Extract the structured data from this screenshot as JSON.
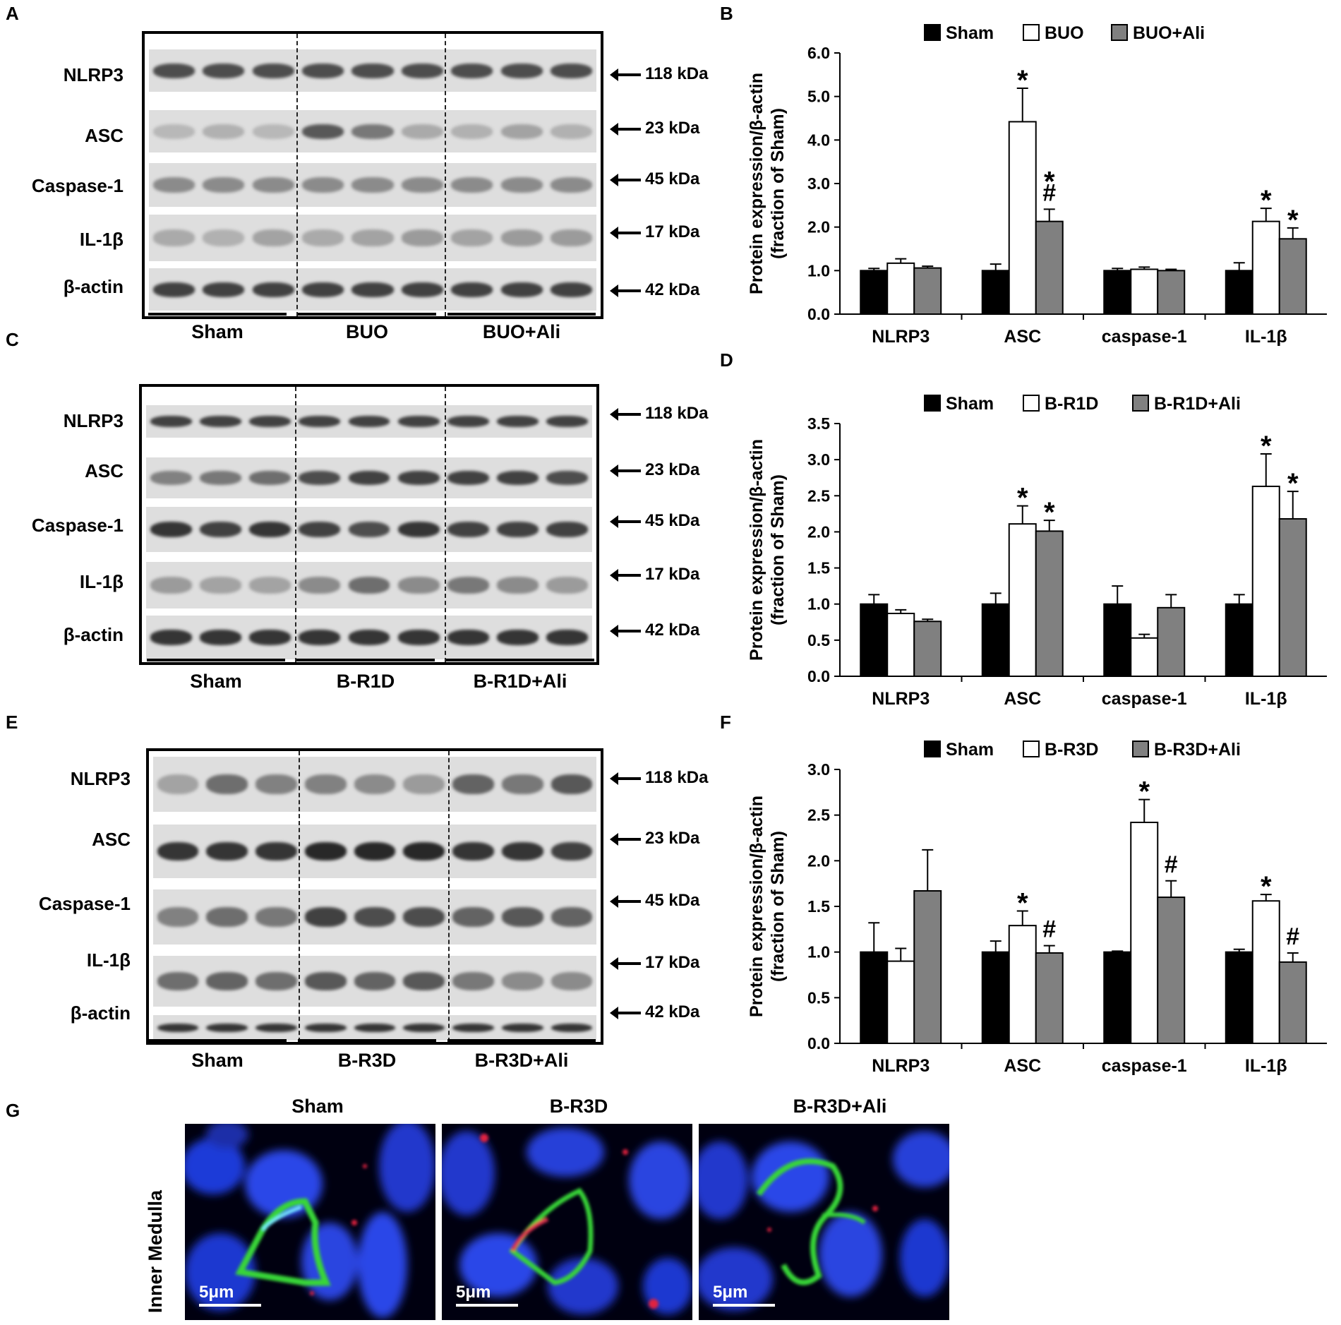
{
  "panels": [
    {
      "letter": "A",
      "kind": "blot",
      "scheme": "A",
      "rows": [
        "NLRP3",
        "ASC",
        "Caspase-1",
        "IL-1β",
        "β-actin"
      ],
      "kda": [
        "118 kDa",
        "23 kDa",
        "45 kDa",
        "17 kDa",
        "42 kDa"
      ],
      "groups": [
        "Sham",
        "BUO",
        "BUO+Ali"
      ]
    },
    {
      "letter": "C",
      "kind": "blot",
      "scheme": "C",
      "rows": [
        "NLRP3",
        "ASC",
        "Caspase-1",
        "IL-1β",
        "β-actin"
      ],
      "kda": [
        "118 kDa",
        "23 kDa",
        "45 kDa",
        "17 kDa",
        "42 kDa"
      ],
      "groups": [
        "Sham",
        "B-R1D",
        "B-R1D+Ali"
      ]
    },
    {
      "letter": "E",
      "kind": "blot",
      "scheme": "E",
      "rows": [
        "NLRP3",
        "ASC",
        "Caspase-1",
        "IL-1β",
        "β-actin"
      ],
      "kda": [
        "118 kDa",
        "23 kDa",
        "45 kDa",
        "17 kDa",
        "42 kDa"
      ],
      "groups": [
        "Sham",
        "B-R3D",
        "B-R3D+Ali"
      ]
    },
    {
      "letter": "G",
      "kind": "microscopy",
      "titles": [
        "Sham",
        "B-R3D",
        "B-R3D+Ali"
      ],
      "side_label": "Inner Medulla",
      "scale_bar": "5μm"
    }
  ],
  "chart_data": [
    {
      "letter": "B",
      "type": "bar",
      "ylabel_line1": "Protein expression/β-actin",
      "ylabel_line2": "(fraction of Sham)",
      "categories": [
        "NLRP3",
        "ASC",
        "caspase-1",
        "IL-1β"
      ],
      "ylim": [
        0,
        6
      ],
      "yticks": [
        "0.0",
        "1.0",
        "2.0",
        "3.0",
        "4.0",
        "5.0",
        "6.0"
      ],
      "legend_position": "top",
      "series": [
        {
          "name": "Sham",
          "color": "#000000",
          "values": [
            1.0,
            1.0,
            1.0,
            1.0
          ],
          "errors": [
            0.05,
            0.15,
            0.05,
            0.18
          ]
        },
        {
          "name": "BUO",
          "color": "#ffffff",
          "values": [
            1.17,
            4.42,
            1.03,
            2.13
          ],
          "errors": [
            0.1,
            0.77,
            0.05,
            0.3
          ]
        },
        {
          "name": "BUO+Ali",
          "color": "#808080",
          "values": [
            1.06,
            2.13,
            1.0,
            1.73
          ],
          "errors": [
            0.04,
            0.28,
            0.03,
            0.25
          ]
        }
      ],
      "annotations": [
        {
          "category": 1,
          "series": 1,
          "text": "*"
        },
        {
          "category": 1,
          "series": 2,
          "text": "#"
        },
        {
          "category": 1,
          "series": 2,
          "text": "*"
        },
        {
          "category": 3,
          "series": 1,
          "text": "*"
        },
        {
          "category": 3,
          "series": 2,
          "text": "*"
        }
      ]
    },
    {
      "letter": "D",
      "type": "bar",
      "ylabel_line1": "Protein expression/β-actin",
      "ylabel_line2": "(fraction of Sham)",
      "categories": [
        "NLRP3",
        "ASC",
        "caspase-1",
        "IL-1β"
      ],
      "ylim": [
        0,
        3.5
      ],
      "yticks": [
        "0.0",
        "0.5",
        "1.0",
        "1.5",
        "2.0",
        "2.5",
        "3.0",
        "3.5"
      ],
      "legend_position": "top",
      "series": [
        {
          "name": "Sham",
          "color": "#000000",
          "values": [
            1.0,
            1.0,
            1.0,
            1.0
          ],
          "errors": [
            0.13,
            0.15,
            0.25,
            0.13
          ]
        },
        {
          "name": "B-R1D",
          "color": "#ffffff",
          "values": [
            0.87,
            2.11,
            0.53,
            2.63
          ],
          "errors": [
            0.05,
            0.25,
            0.05,
            0.45
          ]
        },
        {
          "name": "B-R1D+Ali",
          "color": "#808080",
          "values": [
            0.76,
            2.01,
            0.95,
            2.18
          ],
          "errors": [
            0.03,
            0.15,
            0.18,
            0.38
          ]
        }
      ],
      "annotations": [
        {
          "category": 1,
          "series": 1,
          "text": "*"
        },
        {
          "category": 1,
          "series": 2,
          "text": "*"
        },
        {
          "category": 3,
          "series": 1,
          "text": "*"
        },
        {
          "category": 3,
          "series": 2,
          "text": "*"
        }
      ]
    },
    {
      "letter": "F",
      "type": "bar",
      "ylabel_line1": "Protein expression/β-actin",
      "ylabel_line2": "(fraction of Sham)",
      "categories": [
        "NLRP3",
        "ASC",
        "caspase-1",
        "IL-1β"
      ],
      "ylim": [
        0,
        3
      ],
      "yticks": [
        "0.0",
        "0.5",
        "1.0",
        "1.5",
        "2.0",
        "2.5",
        "3.0"
      ],
      "legend_position": "top",
      "series": [
        {
          "name": "Sham",
          "color": "#000000",
          "values": [
            1.0,
            1.0,
            1.0,
            1.0
          ],
          "errors": [
            0.32,
            0.12,
            0.01,
            0.03
          ]
        },
        {
          "name": "B-R3D",
          "color": "#ffffff",
          "values": [
            0.9,
            1.29,
            2.42,
            1.56
          ],
          "errors": [
            0.14,
            0.16,
            0.25,
            0.07
          ]
        },
        {
          "name": "B-R3D+Ali",
          "color": "#808080",
          "values": [
            1.67,
            0.99,
            1.6,
            0.89
          ],
          "errors": [
            0.45,
            0.08,
            0.18,
            0.1
          ]
        }
      ],
      "annotations": [
        {
          "category": 1,
          "series": 1,
          "text": "*"
        },
        {
          "category": 1,
          "series": 2,
          "text": "#"
        },
        {
          "category": 2,
          "series": 1,
          "text": "*"
        },
        {
          "category": 2,
          "series": 2,
          "text": "#"
        },
        {
          "category": 3,
          "series": 1,
          "text": "*"
        },
        {
          "category": 3,
          "series": 2,
          "text": "#"
        }
      ]
    }
  ]
}
